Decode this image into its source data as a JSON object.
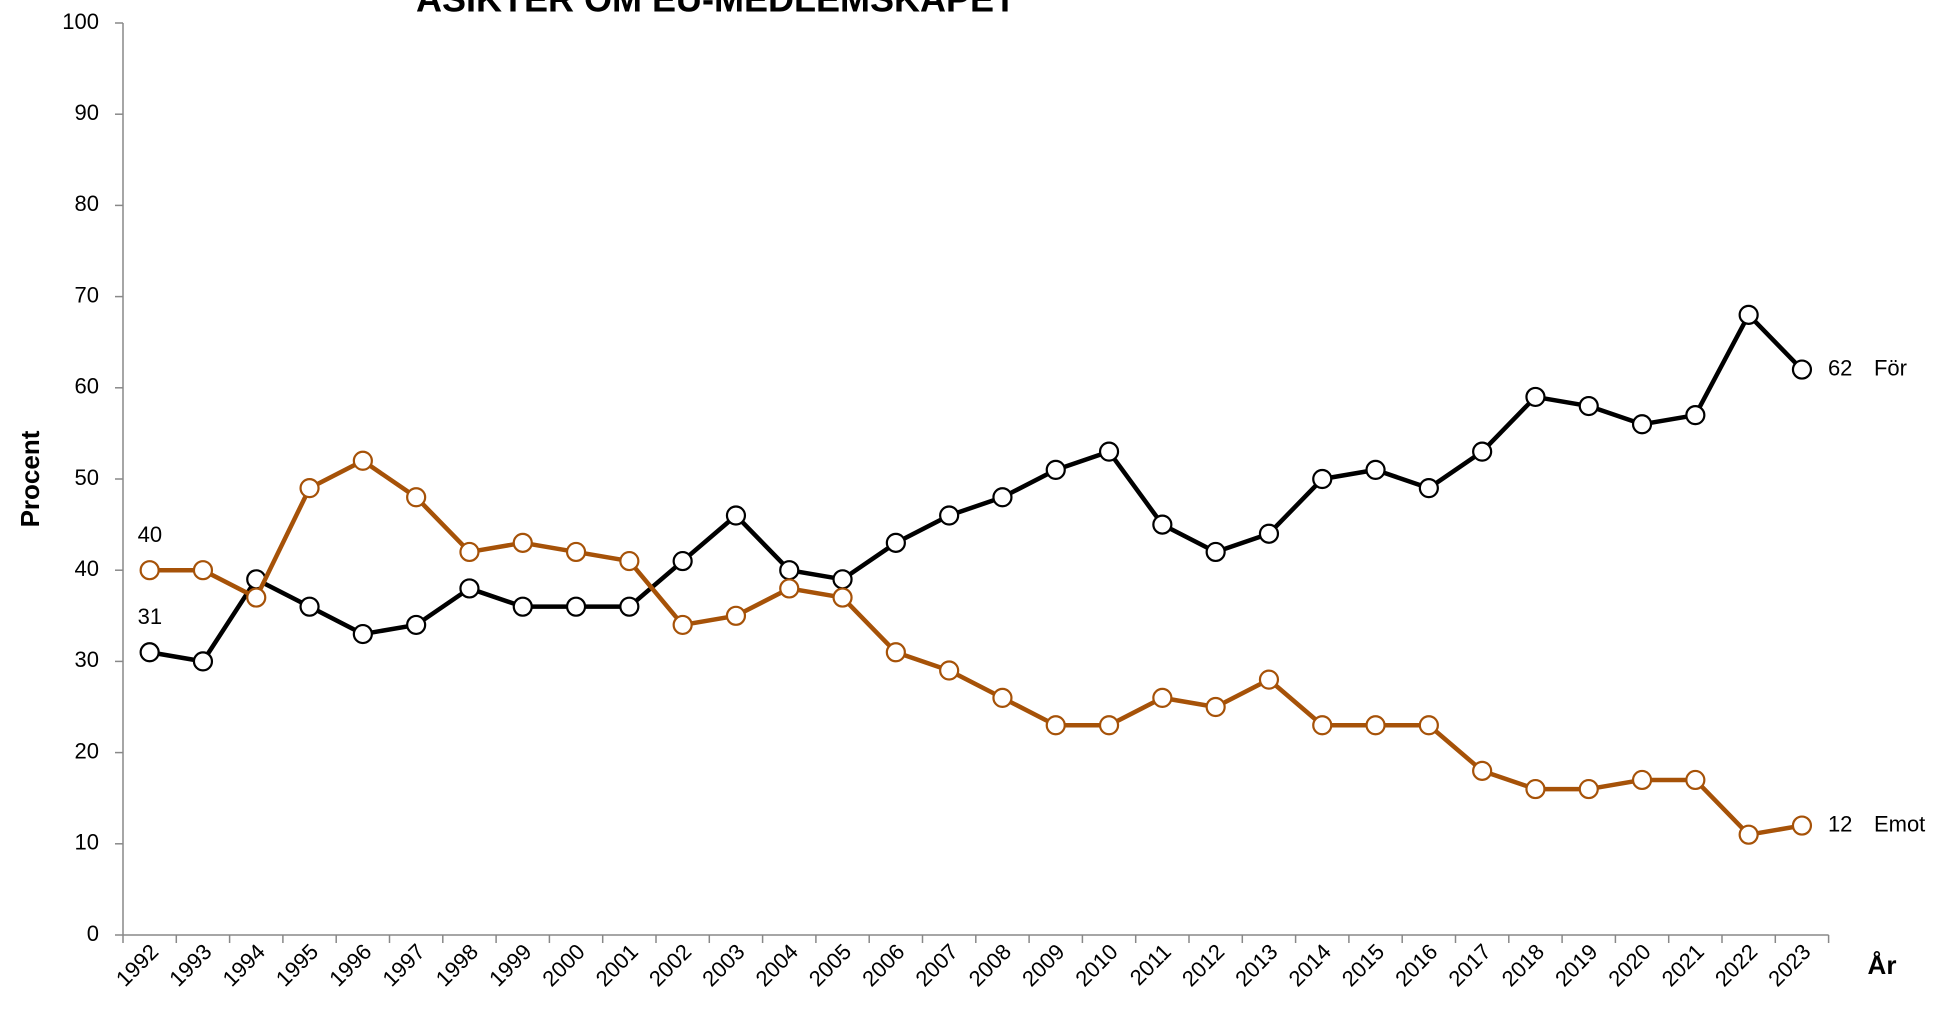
{
  "chart_data": {
    "type": "line",
    "title": "ÅSIKTER OM EU-MEDLEMSKAPET",
    "y_label": "Procent",
    "x_label": "År",
    "categories": [
      "1992",
      "1993",
      "1994",
      "1995",
      "1996",
      "1997",
      "1998",
      "1999",
      "2000",
      "2001",
      "2002",
      "2003",
      "2004",
      "2005",
      "2006",
      "2007",
      "2008",
      "2009",
      "2010",
      "2011",
      "2012",
      "2013",
      "2014",
      "2015",
      "2016",
      "2017",
      "2018",
      "2019",
      "2020",
      "2021",
      "2022",
      "2023"
    ],
    "series": [
      {
        "name": "För",
        "color": "#000000",
        "values": [
          31,
          30,
          39,
          36,
          33,
          34,
          38,
          36,
          36,
          36,
          41,
          46,
          40,
          39,
          43,
          46,
          48,
          51,
          53,
          45,
          42,
          44,
          50,
          51,
          49,
          53,
          59,
          58,
          56,
          57,
          68,
          62
        ]
      },
      {
        "name": "Emot",
        "color": "#a65208",
        "values": [
          40,
          40,
          37,
          49,
          52,
          48,
          42,
          43,
          42,
          41,
          34,
          35,
          38,
          37,
          31,
          29,
          26,
          23,
          23,
          26,
          25,
          28,
          23,
          23,
          23,
          18,
          16,
          16,
          17,
          17,
          11,
          12
        ]
      }
    ],
    "ylim": [
      0,
      100
    ],
    "yticks": [
      0,
      10,
      20,
      30,
      40,
      50,
      60,
      70,
      80,
      90,
      100
    ],
    "grid": false
  }
}
